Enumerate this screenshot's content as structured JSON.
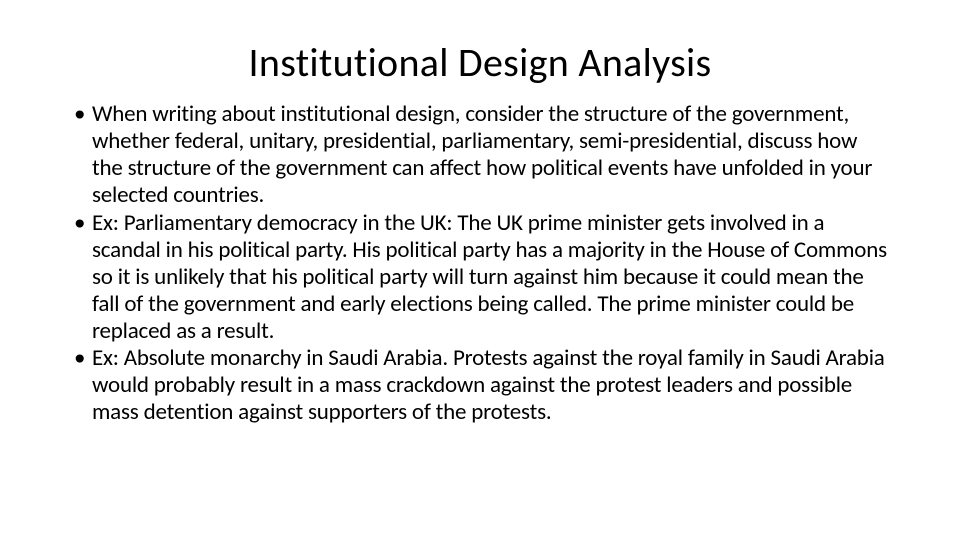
{
  "slide": {
    "title": "Institutional Design Analysis",
    "bullets": [
      "When writing about institutional design, consider the structure of the government, whether federal, unitary, presidential, parliamentary, semi-presidential, discuss how the structure of the government can affect how political events have unfolded in your selected countries.",
      "Ex:  Parliamentary democracy in the UK: The UK prime minister gets involved in a scandal in his political party.  His political party has a majority in the House of Commons so it is unlikely that his political party will turn against him because it could mean the fall of the government and early elections being called. The prime minister could be replaced as a result.",
      "Ex: Absolute monarchy in Saudi Arabia.  Protests against the royal family in Saudi Arabia would probably result in a mass crackdown against the protest leaders and possible mass detention against supporters of the protests."
    ],
    "colors": {
      "background": "#ffffff",
      "text": "#000000"
    },
    "typography": {
      "title_fontsize": 40,
      "title_weight": 300,
      "body_fontsize": 23,
      "body_lineheight": 1.18
    }
  }
}
